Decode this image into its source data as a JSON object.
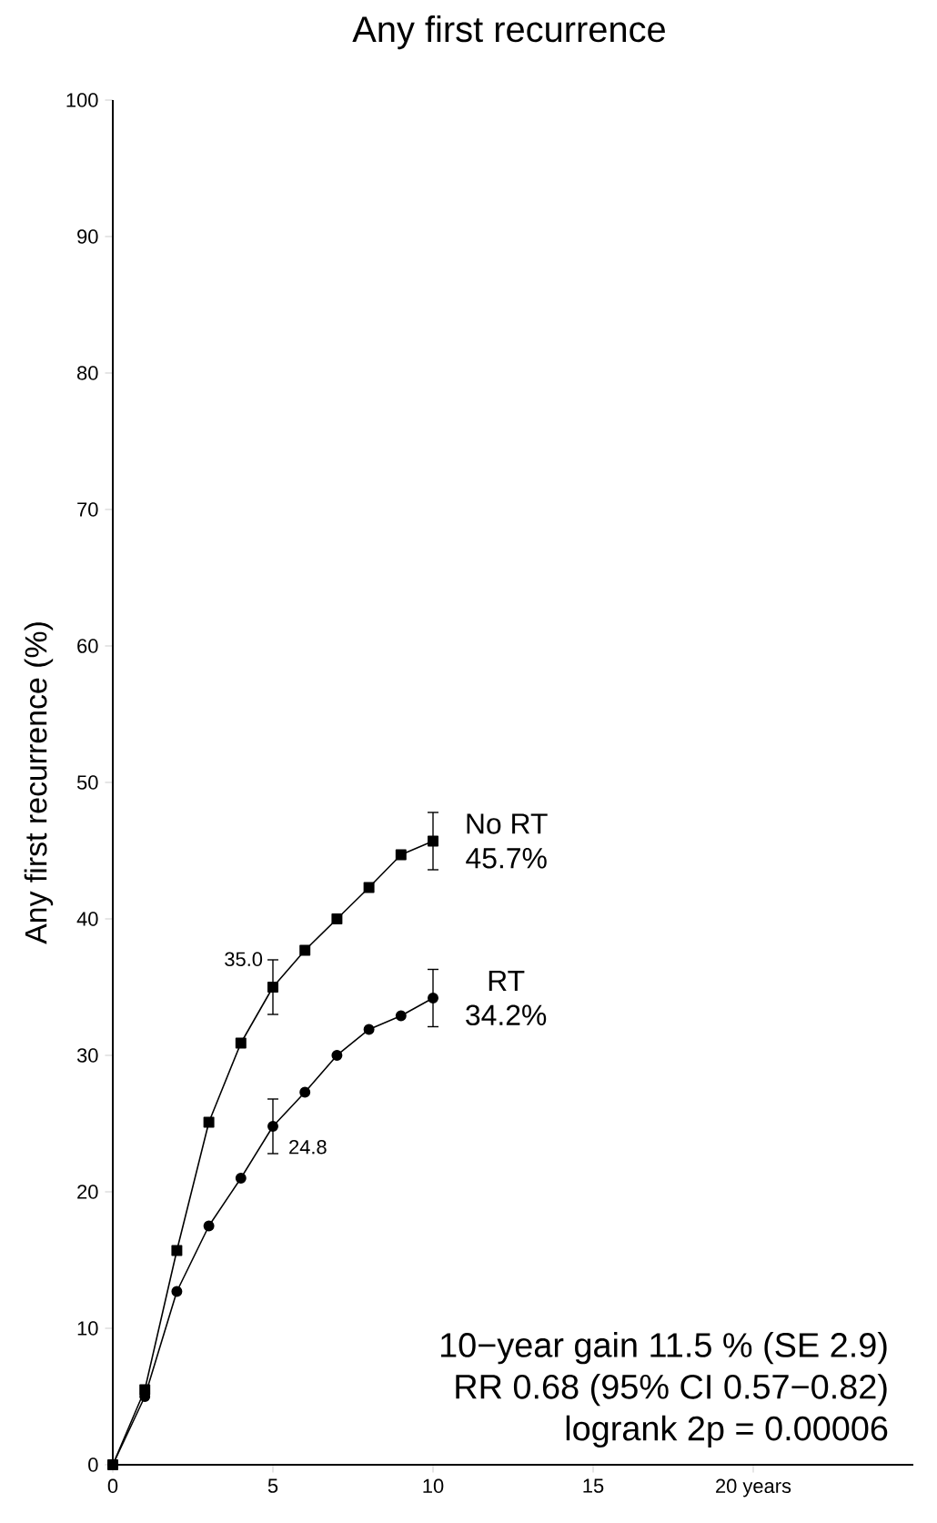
{
  "chart_data": {
    "type": "line",
    "title": "Any first recurrence",
    "ylabel": "Any first recurrence (%)",
    "x": [
      0,
      1,
      2,
      3,
      4,
      5,
      6,
      7,
      8,
      9,
      10
    ],
    "series": [
      {
        "name": "No RT",
        "color": "#000000",
        "marker": "square",
        "values": [
          0,
          5.5,
          15.7,
          25.1,
          30.9,
          35.0,
          37.7,
          40.0,
          42.3,
          44.7,
          45.7
        ],
        "errors": [
          null,
          null,
          null,
          null,
          null,
          2.0,
          null,
          null,
          null,
          null,
          2.1
        ],
        "value_labels": [
          null,
          null,
          null,
          null,
          null,
          null,
          null,
          null,
          null,
          null,
          "45.7%"
        ]
      },
      {
        "name": "RT",
        "color": "#000000",
        "marker": "circle",
        "values": [
          0,
          5.0,
          12.7,
          17.5,
          21.0,
          24.8,
          27.3,
          30.0,
          31.9,
          32.9,
          34.2
        ],
        "errors": [
          null,
          null,
          null,
          null,
          null,
          2.0,
          null,
          null,
          null,
          null,
          2.1
        ],
        "value_labels": [
          null,
          null,
          null,
          null,
          null,
          null,
          null,
          null,
          null,
          null,
          "34.2%"
        ]
      }
    ],
    "annotations": [
      {
        "text": "35.0",
        "x": 5,
        "y": 35.0
      },
      {
        "text": "24.8",
        "x": 5,
        "y": 24.8
      },
      "10−year gain 11.5 % (SE 2.9)",
      "RR 0.68 (95% CI 0.57−0.82)",
      "logrank 2p = 0.00006"
    ],
    "xlim": [
      0,
      25
    ],
    "xticks": [
      0,
      5,
      10,
      15,
      {
        "value": 20,
        "label": "20 years"
      }
    ],
    "ylim": [
      0,
      100
    ],
    "yticks": [
      0,
      10,
      20,
      30,
      40,
      50,
      60,
      70,
      80,
      90,
      100
    ],
    "grid": false,
    "legend": false,
    "line_style": "solid"
  }
}
